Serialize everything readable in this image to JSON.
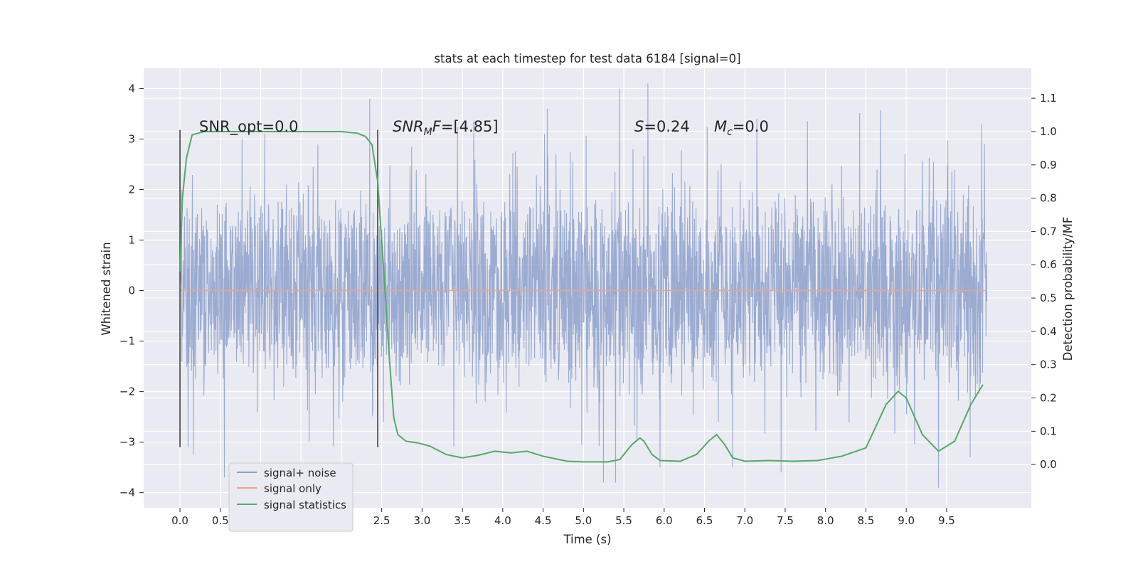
{
  "chart_data": {
    "type": "line",
    "title": "stats at each timestep for test data 6184 [signal=0]",
    "xlabel": "Time (s)",
    "ylabel_left": "Whitened strain",
    "ylabel_right": "Detection probability/MF",
    "xlim": [
      -0.45,
      10.55
    ],
    "ylim_left": [
      -4.3,
      4.4
    ],
    "ylim_right": [
      -0.13,
      1.19
    ],
    "x_ticks": [
      "0.0",
      "0.5",
      "1.0",
      "1.5",
      "2.0",
      "2.5",
      "3.0",
      "3.5",
      "4.0",
      "4.5",
      "5.0",
      "5.5",
      "6.0",
      "6.5",
      "7.0",
      "7.5",
      "8.0",
      "8.5",
      "9.0",
      "9.5"
    ],
    "y_left_ticks": [
      "−4",
      "−3",
      "−2",
      "−1",
      "0",
      "1",
      "2",
      "3",
      "4"
    ],
    "y_right_ticks": [
      "0.0",
      "0.1",
      "0.2",
      "0.3",
      "0.4",
      "0.5",
      "0.6",
      "0.7",
      "0.8",
      "0.9",
      "1.0",
      "1.1"
    ],
    "grid": true,
    "legend_position": "lower-left",
    "annotations": {
      "snr_opt": "SNR_opt=0.0",
      "snr_mf": "[4.85]",
      "s_val": "=0.24",
      "mc_val": "=0.0"
    },
    "vlines_x": [
      0.0,
      2.45
    ],
    "series": [
      {
        "name": "signal+ noise",
        "color": "#8da0cb",
        "axis": "left",
        "t_range": [
          0.0,
          10.0
        ],
        "typical_abs_amplitude": 1.3,
        "peaks": [
          [
            0.02,
            2.0
          ],
          [
            0.1,
            -3.1
          ],
          [
            0.55,
            -3.7
          ],
          [
            1.05,
            3.1
          ],
          [
            1.6,
            -3.0
          ],
          [
            2.35,
            3.8
          ],
          [
            2.52,
            -2.6
          ],
          [
            4.55,
            3.6
          ],
          [
            5.25,
            -3.8
          ],
          [
            5.4,
            -3.8
          ],
          [
            5.45,
            4.0
          ],
          [
            5.8,
            4.1
          ],
          [
            5.95,
            -3.5
          ],
          [
            6.85,
            -3.5
          ],
          [
            7.15,
            3.4
          ],
          [
            7.45,
            -3.6
          ],
          [
            9.4,
            -3.9
          ],
          [
            9.97,
            2.9
          ]
        ]
      },
      {
        "name": "signal only",
        "color": "#e8a58b",
        "axis": "left",
        "x": [
          0.0,
          10.0
        ],
        "y": [
          0.0,
          0.0
        ]
      },
      {
        "name": "signal statistics",
        "color": "#55a868",
        "axis": "right",
        "x": [
          0.0,
          0.03,
          0.08,
          0.15,
          0.3,
          1.0,
          2.0,
          2.2,
          2.3,
          2.38,
          2.45,
          2.52,
          2.6,
          2.65,
          2.7,
          2.8,
          2.95,
          3.1,
          3.3,
          3.5,
          3.7,
          3.9,
          4.1,
          4.3,
          4.5,
          4.8,
          5.0,
          5.3,
          5.45,
          5.6,
          5.7,
          5.75,
          5.85,
          5.95,
          6.2,
          6.4,
          6.55,
          6.65,
          6.75,
          6.85,
          7.0,
          7.3,
          7.6,
          7.9,
          8.2,
          8.5,
          8.75,
          8.9,
          9.0,
          9.2,
          9.4,
          9.6,
          9.8,
          9.95
        ],
        "y": [
          0.58,
          0.8,
          0.92,
          0.99,
          1.0,
          1.0,
          1.0,
          0.995,
          0.985,
          0.96,
          0.85,
          0.6,
          0.3,
          0.14,
          0.09,
          0.07,
          0.065,
          0.055,
          0.03,
          0.02,
          0.028,
          0.04,
          0.035,
          0.04,
          0.025,
          0.01,
          0.008,
          0.008,
          0.015,
          0.06,
          0.08,
          0.07,
          0.03,
          0.012,
          0.01,
          0.03,
          0.07,
          0.09,
          0.06,
          0.02,
          0.01,
          0.012,
          0.01,
          0.012,
          0.025,
          0.05,
          0.18,
          0.22,
          0.2,
          0.09,
          0.04,
          0.07,
          0.18,
          0.24
        ]
      }
    ]
  }
}
